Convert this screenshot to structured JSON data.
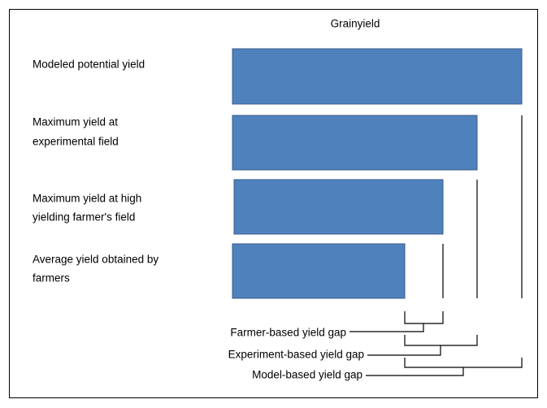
{
  "title": "Grainyield",
  "bars": [
    {
      "lines": [
        "Modeled potential yield"
      ]
    },
    {
      "lines": [
        "Maximum yield at",
        "experimental field"
      ]
    },
    {
      "lines": [
        "Maximum yield at high",
        "yielding farmer's field"
      ]
    },
    {
      "lines": [
        "Average yield obtained by",
        "farmers"
      ]
    }
  ],
  "gaps": [
    {
      "label": "Farmer-based yield gap"
    },
    {
      "label": "Experiment-based yield gap"
    },
    {
      "label": "Model-based yield gap"
    }
  ]
}
